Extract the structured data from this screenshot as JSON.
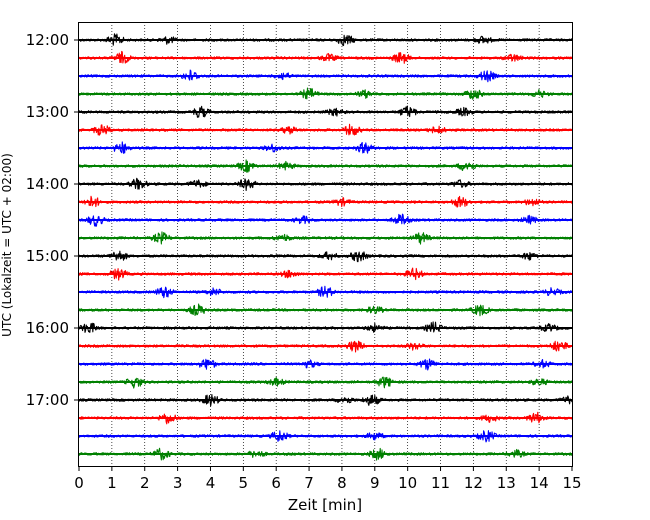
{
  "chart_data": {
    "type": "line",
    "title": "",
    "xlabel": "Zeit  [min]",
    "ylabel": "UTC (Lokalzeit = UTC + 02:00)",
    "xlim": [
      0,
      15
    ],
    "x_ticks": [
      "0",
      "1",
      "2",
      "3",
      "4",
      "5",
      "6",
      "7",
      "8",
      "9",
      "10",
      "11",
      "12",
      "13",
      "14",
      "15"
    ],
    "y_ticks": [
      "12:00",
      "13:00",
      "14:00",
      "15:00",
      "16:00",
      "17:00"
    ],
    "row_interval_min": 15,
    "grid_x": true,
    "series_colors": [
      "#000000",
      "#ff0000",
      "#0000ff",
      "#008000"
    ],
    "rows": [
      {
        "start": "12:00",
        "color": "#000000",
        "events": [
          1.1,
          2.7,
          8.1,
          12.3
        ]
      },
      {
        "start": "12:15",
        "color": "#ff0000",
        "events": [
          1.3,
          7.6,
          9.8,
          13.2
        ]
      },
      {
        "start": "12:30",
        "color": "#0000ff",
        "events": [
          3.4,
          6.2,
          12.4
        ]
      },
      {
        "start": "12:45",
        "color": "#008000",
        "events": [
          7.0,
          8.7,
          12.0,
          14.0
        ]
      },
      {
        "start": "13:00",
        "color": "#000000",
        "events": [
          3.7,
          7.8,
          10.0,
          11.7
        ]
      },
      {
        "start": "13:15",
        "color": "#ff0000",
        "events": [
          0.7,
          6.4,
          8.3,
          10.9
        ]
      },
      {
        "start": "13:30",
        "color": "#0000ff",
        "events": [
          1.3,
          5.9,
          8.7
        ]
      },
      {
        "start": "13:45",
        "color": "#008000",
        "events": [
          5.1,
          6.3,
          11.8
        ]
      },
      {
        "start": "14:00",
        "color": "#000000",
        "events": [
          1.8,
          3.6,
          5.1,
          11.6
        ]
      },
      {
        "start": "14:15",
        "color": "#ff0000",
        "events": [
          0.4,
          8.0,
          11.6,
          13.8
        ]
      },
      {
        "start": "14:30",
        "color": "#0000ff",
        "events": [
          0.5,
          6.8,
          9.8,
          13.7
        ]
      },
      {
        "start": "14:45",
        "color": "#008000",
        "events": [
          2.5,
          6.2,
          10.4
        ]
      },
      {
        "start": "15:00",
        "color": "#000000",
        "events": [
          1.2,
          7.6,
          8.5,
          13.7
        ]
      },
      {
        "start": "15:15",
        "color": "#ff0000",
        "events": [
          1.2,
          6.4,
          10.2
        ]
      },
      {
        "start": "15:30",
        "color": "#0000ff",
        "events": [
          2.6,
          4.1,
          7.5,
          14.4
        ]
      },
      {
        "start": "15:45",
        "color": "#008000",
        "events": [
          3.6,
          9.0,
          12.2
        ]
      },
      {
        "start": "16:00",
        "color": "#000000",
        "events": [
          0.3,
          9.0,
          10.8,
          14.3
        ]
      },
      {
        "start": "16:15",
        "color": "#ff0000",
        "events": [
          8.4,
          10.2,
          14.6
        ]
      },
      {
        "start": "16:30",
        "color": "#0000ff",
        "events": [
          3.9,
          7.0,
          10.6,
          14.1
        ]
      },
      {
        "start": "16:45",
        "color": "#008000",
        "events": [
          1.7,
          6.0,
          9.3,
          14.0
        ]
      },
      {
        "start": "17:00",
        "color": "#000000",
        "events": [
          4.0,
          8.1,
          8.9,
          14.9
        ]
      },
      {
        "start": "17:15",
        "color": "#ff0000",
        "events": [
          2.7,
          12.5,
          13.9
        ]
      },
      {
        "start": "17:30",
        "color": "#0000ff",
        "events": [
          6.1,
          9.0,
          12.4
        ]
      },
      {
        "start": "17:45",
        "color": "#008000",
        "events": [
          2.5,
          5.4,
          9.1,
          13.3
        ]
      }
    ]
  }
}
